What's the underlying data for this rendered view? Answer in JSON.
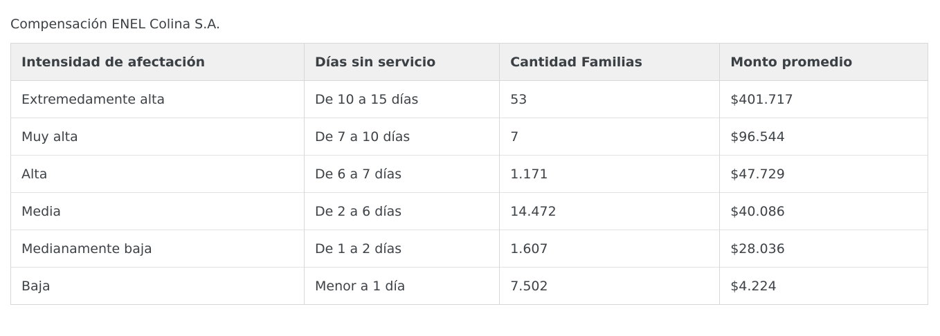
{
  "page": {
    "title": "Compensación ENEL Colina S.A."
  },
  "table": {
    "columns": [
      "Intensidad de afectación",
      "Días sin servicio",
      "Cantidad Familias",
      "Monto promedio"
    ],
    "rows": [
      [
        "Extremedamente alta",
        "De 10 a 15 días",
        "53",
        "$401.717"
      ],
      [
        "Muy alta",
        "De 7 a 10 días",
        "7",
        "$96.544"
      ],
      [
        "Alta",
        "De 6 a 7 días",
        "1.171",
        "$47.729"
      ],
      [
        "Media",
        "De 2 a 6 días",
        "14.472",
        "$40.086"
      ],
      [
        "Medianamente baja",
        "De 1 a 2 días",
        "1.607",
        "$28.036"
      ],
      [
        "Baja",
        "Menor a 1 día",
        "7.502",
        "$4.224"
      ]
    ]
  },
  "chart_data": {
    "type": "table",
    "title": "Compensación ENEL Colina S.A.",
    "columns": [
      "Intensidad de afectación",
      "Días sin servicio",
      "Cantidad Familias",
      "Monto promedio"
    ],
    "categories": [
      "Extremedamente alta",
      "Muy alta",
      "Alta",
      "Media",
      "Medianamente baja",
      "Baja"
    ],
    "dias_sin_servicio": [
      "De 10 a 15 días",
      "De 7 a 10 días",
      "De 6 a 7 días",
      "De 2 a 6 días",
      "De 1 a 2 días",
      "Menor a 1 día"
    ],
    "cantidad_familias": [
      53,
      7,
      1171,
      14472,
      1607,
      7502
    ],
    "monto_promedio_clp": [
      401717,
      96544,
      47729,
      40086,
      28036,
      4224
    ]
  },
  "colors": {
    "text": "#3d4247",
    "header_text": "#3b4045",
    "header_bg": "#f0f0f0",
    "grid_border": "#d7d7d7",
    "row_border": "#e2e2e2",
    "background": "#ffffff"
  }
}
